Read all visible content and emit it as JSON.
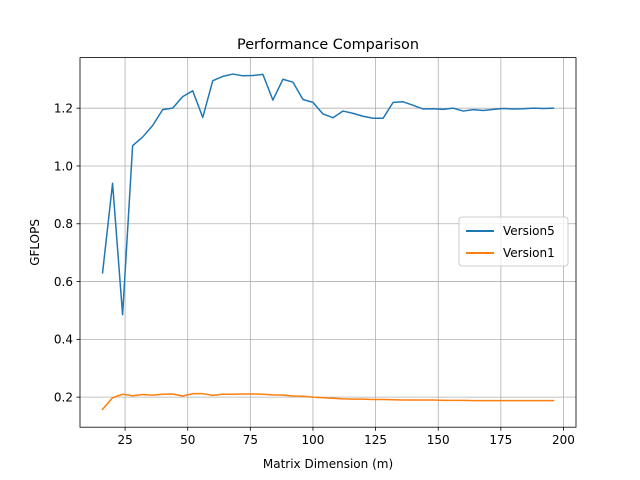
{
  "chart_data": {
    "type": "line",
    "title": "Performance Comparison",
    "xlabel": "Matrix Dimension (m)",
    "ylabel": "GFLOPS",
    "xlim": [
      7,
      205
    ],
    "ylim": [
      0.096,
      1.375
    ],
    "xticks": [
      25,
      50,
      75,
      100,
      125,
      150,
      175,
      200
    ],
    "yticks": [
      0.2,
      0.4,
      0.6,
      0.8,
      1.0,
      1.2
    ],
    "ytick_labels": [
      "0.2",
      "0.4",
      "0.6",
      "0.8",
      "1.0",
      "1.2"
    ],
    "grid": true,
    "legend_position": "center-right",
    "x": [
      16,
      20,
      24,
      28,
      32,
      36,
      40,
      44,
      48,
      52,
      56,
      60,
      64,
      68,
      72,
      76,
      80,
      84,
      88,
      92,
      96,
      100,
      104,
      108,
      112,
      116,
      120,
      124,
      128,
      132,
      136,
      140,
      144,
      148,
      152,
      156,
      160,
      164,
      168,
      172,
      176,
      180,
      184,
      188,
      192,
      196
    ],
    "series": [
      {
        "name": "Version5",
        "color": "#1f77b4",
        "values": [
          0.63,
          0.94,
          0.485,
          1.07,
          1.1,
          1.14,
          1.195,
          1.2,
          1.24,
          1.26,
          1.168,
          1.295,
          1.31,
          1.318,
          1.312,
          1.313,
          1.317,
          1.228,
          1.3,
          1.29,
          1.23,
          1.22,
          1.18,
          1.167,
          1.19,
          1.182,
          1.172,
          1.165,
          1.165,
          1.22,
          1.222,
          1.21,
          1.197,
          1.198,
          1.196,
          1.2,
          1.19,
          1.195,
          1.192,
          1.196,
          1.199,
          1.197,
          1.198,
          1.2,
          1.199,
          1.2
        ]
      },
      {
        "name": "Version1",
        "color": "#ff7f0e",
        "values": [
          0.158,
          0.198,
          0.21,
          0.205,
          0.209,
          0.207,
          0.21,
          0.211,
          0.204,
          0.212,
          0.212,
          0.206,
          0.21,
          0.21,
          0.211,
          0.211,
          0.21,
          0.208,
          0.207,
          0.204,
          0.203,
          0.2,
          0.198,
          0.196,
          0.194,
          0.193,
          0.193,
          0.192,
          0.192,
          0.191,
          0.19,
          0.19,
          0.19,
          0.19,
          0.189,
          0.189,
          0.189,
          0.188,
          0.188,
          0.188,
          0.188,
          0.188,
          0.188,
          0.188,
          0.188,
          0.188
        ]
      }
    ]
  }
}
